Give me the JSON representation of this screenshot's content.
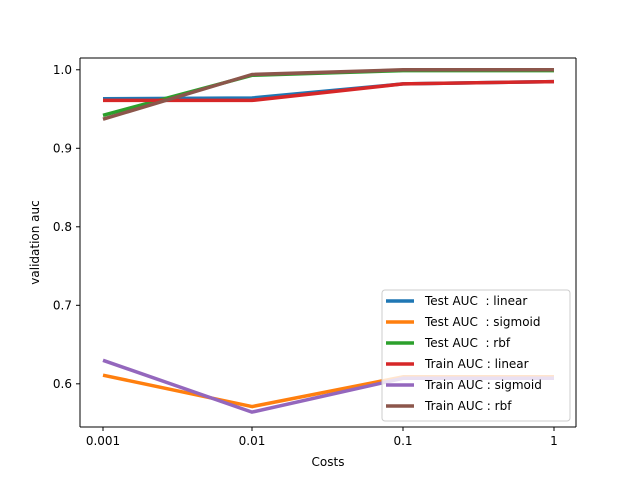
{
  "chart_data": {
    "type": "line",
    "title": "",
    "xlabel": "Costs",
    "ylabel": "validation auc",
    "categories": [
      "0.001",
      "0.01",
      "0.1",
      "1"
    ],
    "ylim": [
      0.545,
      1.015
    ],
    "yticks": [
      "0.6",
      "0.7",
      "0.8",
      "0.9",
      "1.0"
    ],
    "grid": false,
    "legend_position": "lower-right",
    "series": [
      {
        "name": "Test AUC  : linear",
        "color": "#1f77b4",
        "values": [
          0.963,
          0.964,
          0.982,
          0.985
        ]
      },
      {
        "name": "Test AUC  : sigmoid",
        "color": "#ff7f0e",
        "values": [
          0.611,
          0.571,
          0.609,
          0.609
        ]
      },
      {
        "name": "Test AUC  : rbf",
        "color": "#2ca02c",
        "values": [
          0.942,
          0.993,
          0.999,
          0.999
        ]
      },
      {
        "name": "Train AUC : linear",
        "color": "#d62728",
        "values": [
          0.961,
          0.961,
          0.982,
          0.985
        ]
      },
      {
        "name": "Train AUC : sigmoid",
        "color": "#9467bd",
        "values": [
          0.63,
          0.564,
          0.607,
          0.607
        ]
      },
      {
        "name": "Train AUC : rbf",
        "color": "#8c564b",
        "values": [
          0.937,
          0.994,
          1.0,
          1.0
        ]
      }
    ]
  }
}
